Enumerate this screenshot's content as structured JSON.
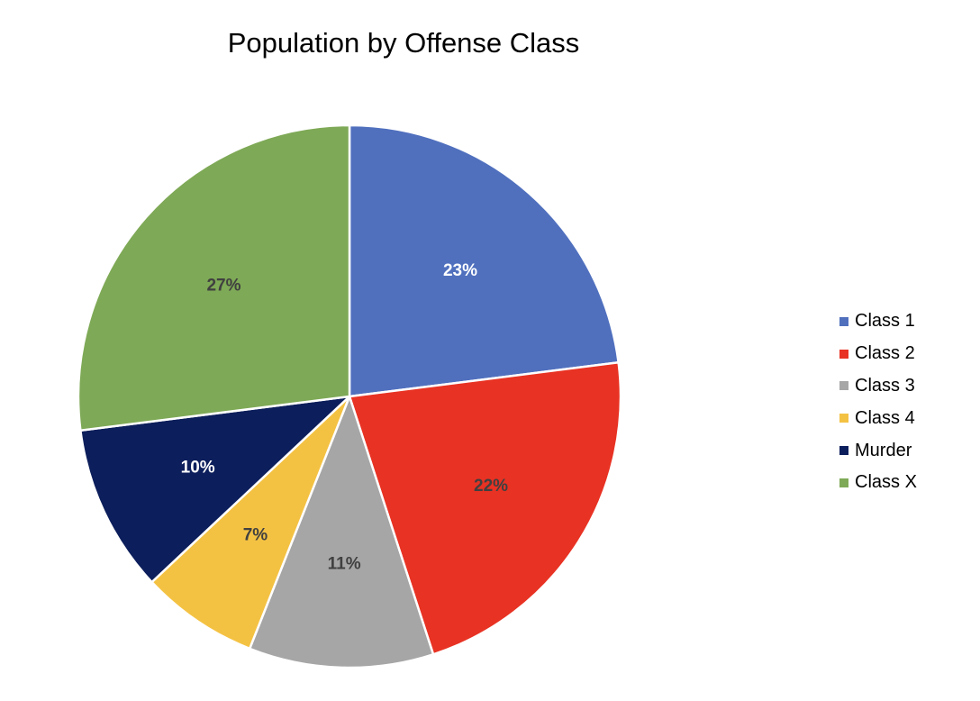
{
  "chart_data": {
    "type": "pie",
    "title": "Population by Offense Class",
    "slices": [
      {
        "label": "Class 1",
        "value": 23,
        "display": "23%",
        "color": "#5070be",
        "label_color": "#ffffff"
      },
      {
        "label": "Class 2",
        "value": 22,
        "display": "22%",
        "color": "#e83223",
        "label_color": "#404040"
      },
      {
        "label": "Class 3",
        "value": 11,
        "display": "11%",
        "color": "#a6a6a6",
        "label_color": "#404040"
      },
      {
        "label": "Class 4",
        "value": 7,
        "display": "7%",
        "color": "#f4c243",
        "label_color": "#404040"
      },
      {
        "label": "Murder",
        "value": 10,
        "display": "10%",
        "color": "#0c1e5b",
        "label_color": "#ffffff"
      },
      {
        "label": "Class X",
        "value": 27,
        "display": "27%",
        "color": "#7ea956",
        "label_color": "#404040"
      }
    ],
    "start_angle": "12 o'clock",
    "direction": "clockwise",
    "legend_position": "right"
  }
}
